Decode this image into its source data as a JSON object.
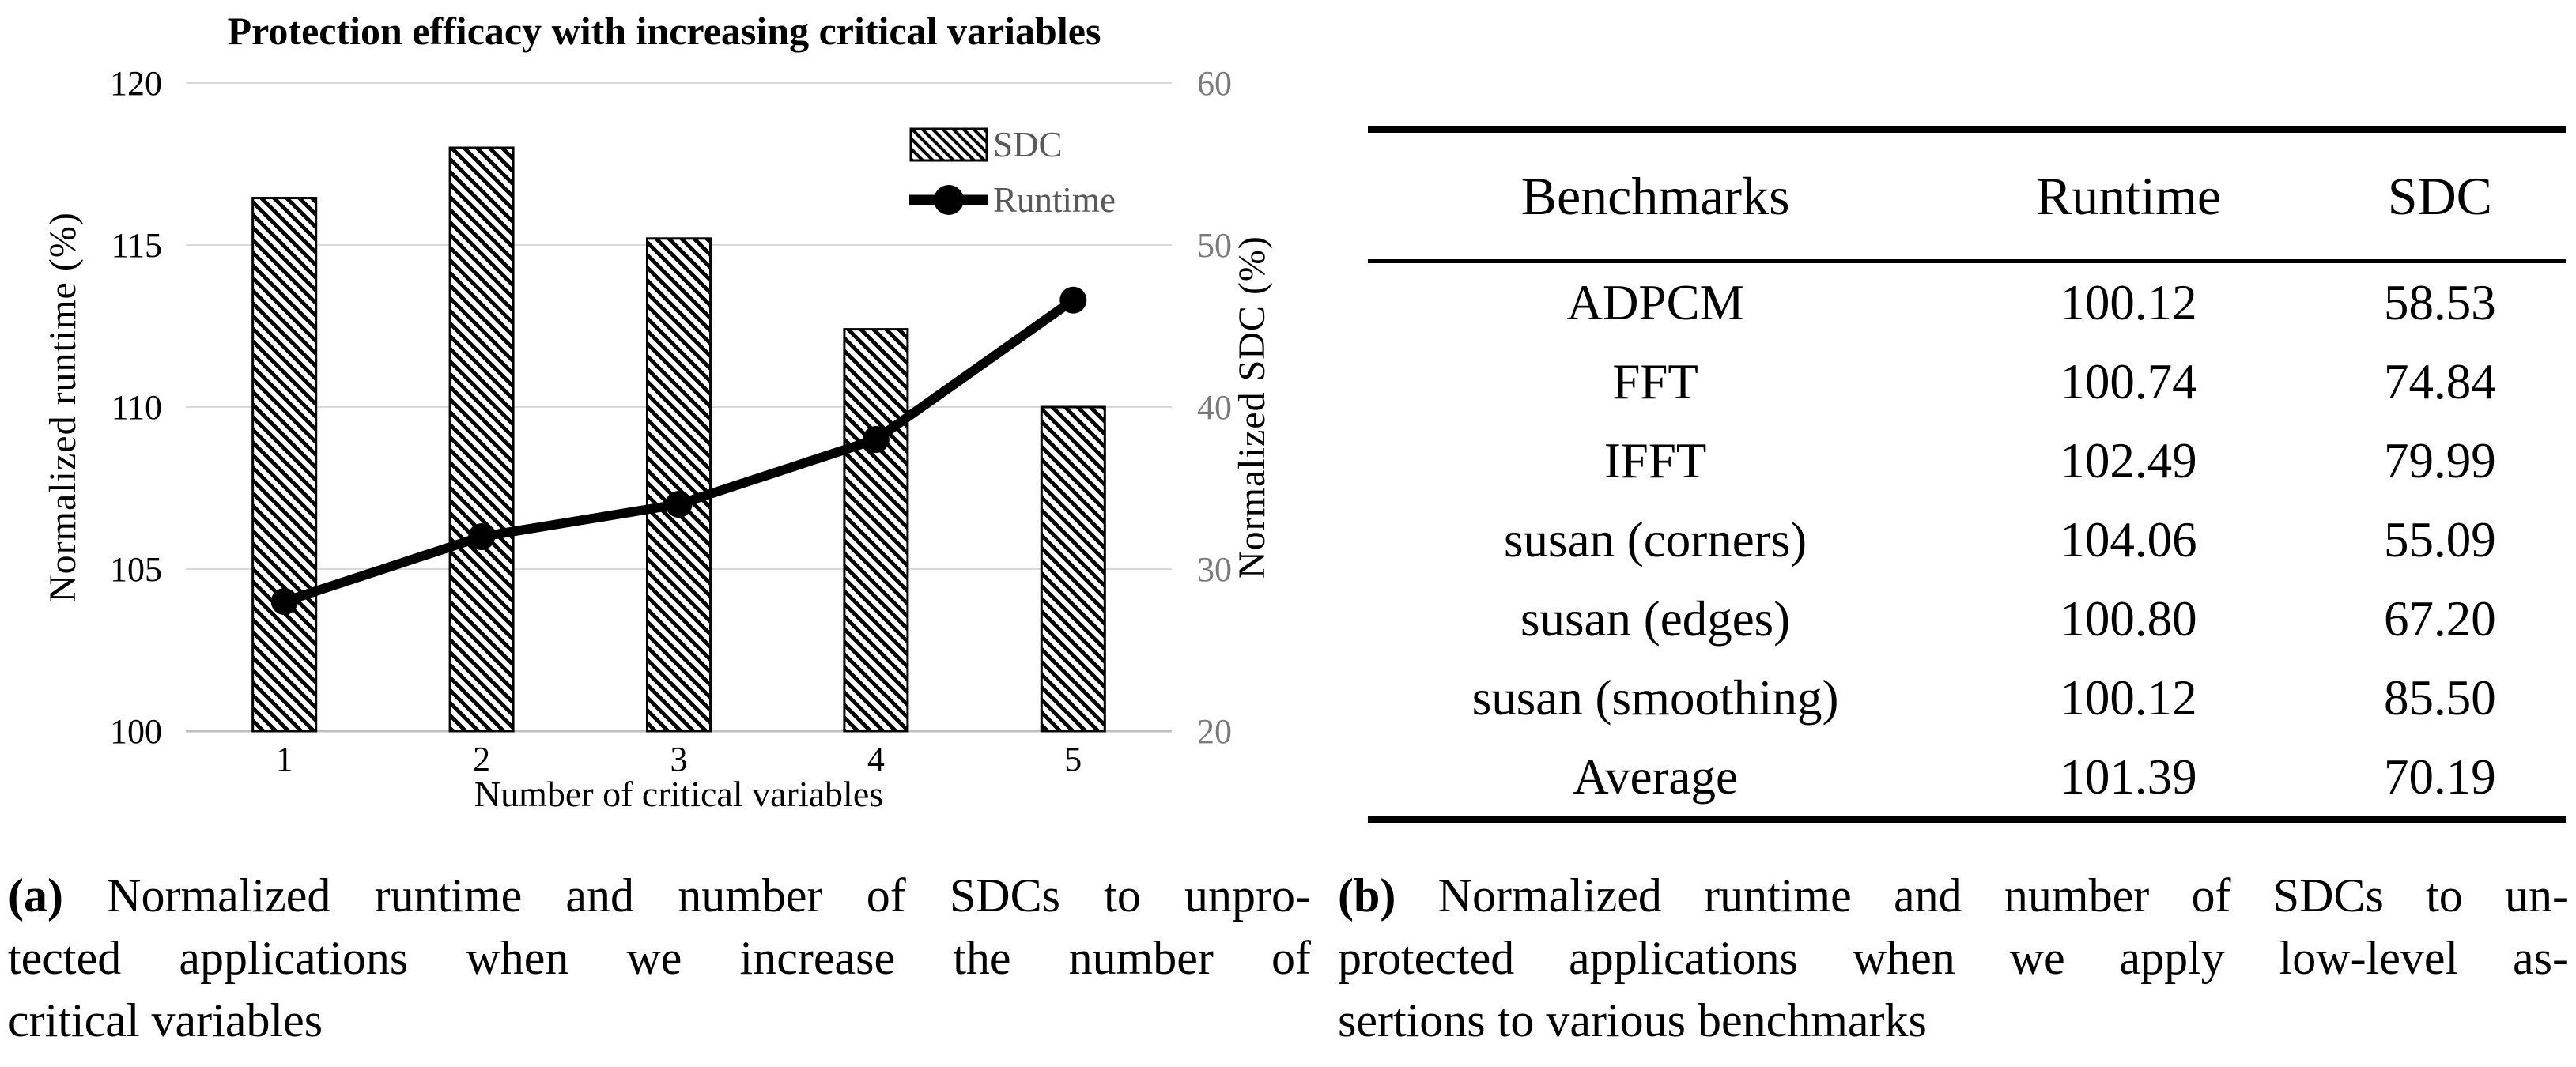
{
  "chart_data": {
    "type": "bar+line",
    "title": "Protection efficacy with increasing critical variables",
    "xlabel": "Number of critical variables",
    "ylabel_left": "Normalized runtime (%)",
    "ylabel_right": "Normalized SDC (%)",
    "categories": [
      "1",
      "2",
      "3",
      "4",
      "5"
    ],
    "y_left": {
      "min": 100,
      "max": 120,
      "ticks": [
        "100",
        "105",
        "110",
        "115",
        "120"
      ]
    },
    "y_right": {
      "min": 20,
      "max": 60,
      "ticks": [
        "20",
        "30",
        "40",
        "50",
        "60"
      ]
    },
    "series": [
      {
        "name": "SDC",
        "type": "bar",
        "axis": "right",
        "values": [
          52.9,
          56.0,
          50.4,
          44.8,
          40.0
        ]
      },
      {
        "name": "Runtime",
        "type": "line",
        "axis": "left",
        "values": [
          104.0,
          106.0,
          107.0,
          109.0,
          113.3
        ]
      }
    ],
    "legend_position": "top-right",
    "grid": "horizontal",
    "colors": {
      "bar_fill": "#ffffff",
      "bar_hatch": "#000000",
      "line": "#000000",
      "gridline": "#d9d9d9",
      "axis_line": "#bfbfbf",
      "tick_left": "#000000",
      "tick_right": "#7a7a7a",
      "legend_text": "#595959"
    }
  },
  "table": {
    "headers": [
      "Benchmarks",
      "Runtime",
      "SDC"
    ],
    "rows": [
      [
        "ADPCM",
        "100.12",
        "58.53"
      ],
      [
        "FFT",
        "100.74",
        "74.84"
      ],
      [
        "IFFT",
        "102.49",
        "79.99"
      ],
      [
        "susan (corners)",
        "104.06",
        "55.09"
      ],
      [
        "susan (edges)",
        "100.80",
        "67.20"
      ],
      [
        "susan (smoothing)",
        "100.12",
        "85.50"
      ],
      [
        "Average",
        "101.39",
        "70.19"
      ]
    ]
  },
  "captions": {
    "a": {
      "label": "(a)",
      "lines": [
        "Normalized runtime and number of SDCs to unpro-",
        "tected applications when we increase the number of",
        "critical variables"
      ]
    },
    "b": {
      "label": "(b)",
      "lines": [
        "Normalized runtime and number of SDCs to un-",
        "protected applications when we apply low-level as-",
        "sertions to various benchmarks"
      ]
    }
  }
}
